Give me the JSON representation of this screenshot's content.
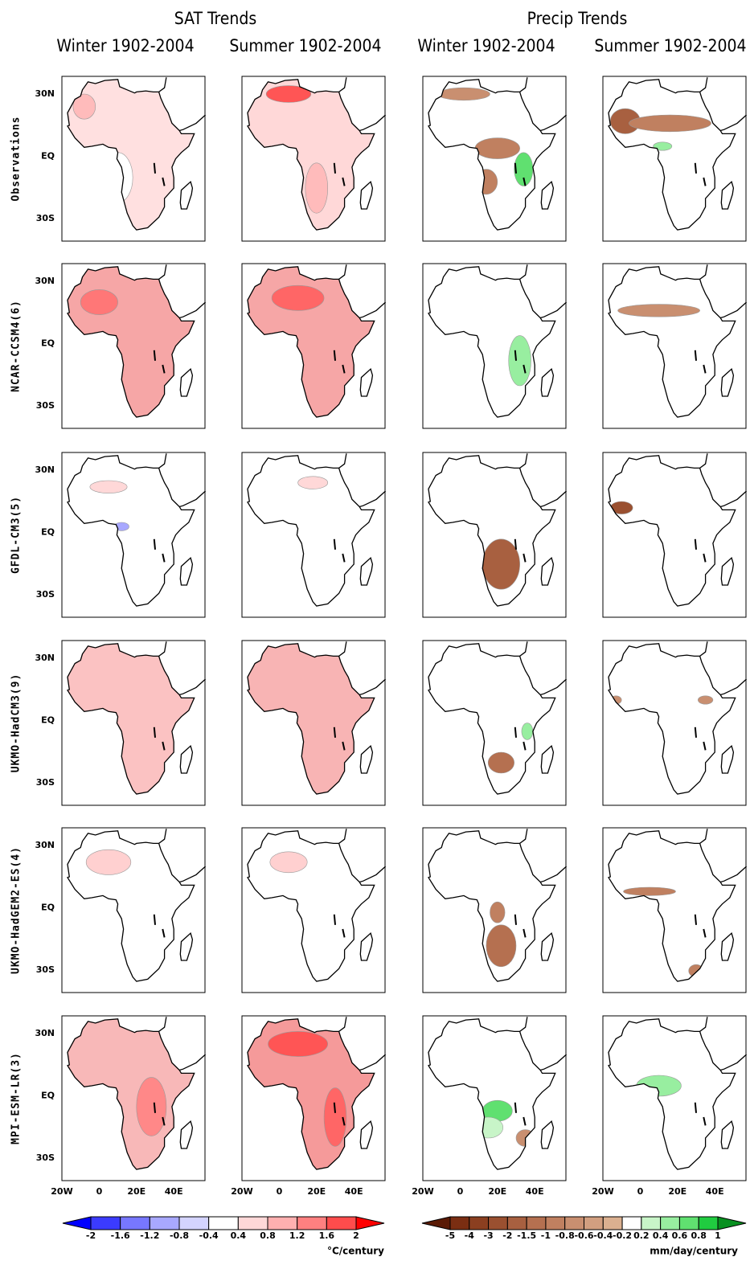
{
  "headers": {
    "sat": "SAT Trends",
    "precip": "Precip Trends"
  },
  "columns": [
    "Winter 1902-2004",
    "Summer 1902-2004",
    "Winter 1902-2004",
    "Summer 1902-2004"
  ],
  "rows": [
    "Observations",
    "NCAR-CCSM4(6)",
    "GFDL-CM3(5)",
    "UKMO-HadCM3(9)",
    "UKMO-HadGEM2-ES(4)",
    "MPI-ESM-LR(3)"
  ],
  "lat_labels": [
    "30N",
    "EQ",
    "30S"
  ],
  "lon_labels": [
    "20W",
    "0",
    "20E",
    "40E"
  ],
  "colorbars": [
    {
      "labels": [
        "-2",
        "-1.6",
        "-1.2",
        "-0.8",
        "-0.4",
        "0.4",
        "0.8",
        "1.2",
        "1.6",
        "2"
      ],
      "colors": [
        "#0000ff",
        "#3b3bff",
        "#7777ff",
        "#a8a8ff",
        "#d4d4ff",
        "#ffffff",
        "#ffd8d8",
        "#ffb0b0",
        "#ff8080",
        "#ff4c4c",
        "#ff0000"
      ],
      "unit": "°C/century"
    },
    {
      "labels": [
        "-5",
        "-4",
        "-3",
        "-2",
        "-1.5",
        "-1",
        "-0.8",
        "-0.6",
        "-0.4",
        "-0.2",
        "0.2",
        "0.4",
        "0.6",
        "0.8",
        "1"
      ],
      "colors": [
        "#5a1a05",
        "#7a2e12",
        "#8b3f20",
        "#9a5030",
        "#a86040",
        "#b57050",
        "#c08060",
        "#c98f70",
        "#d29f80",
        "#dbb090",
        "#ffffff",
        "#c8f5c8",
        "#98eea0",
        "#60e070",
        "#20cc40",
        "#089020"
      ],
      "unit": "mm/day/century"
    }
  ]
}
